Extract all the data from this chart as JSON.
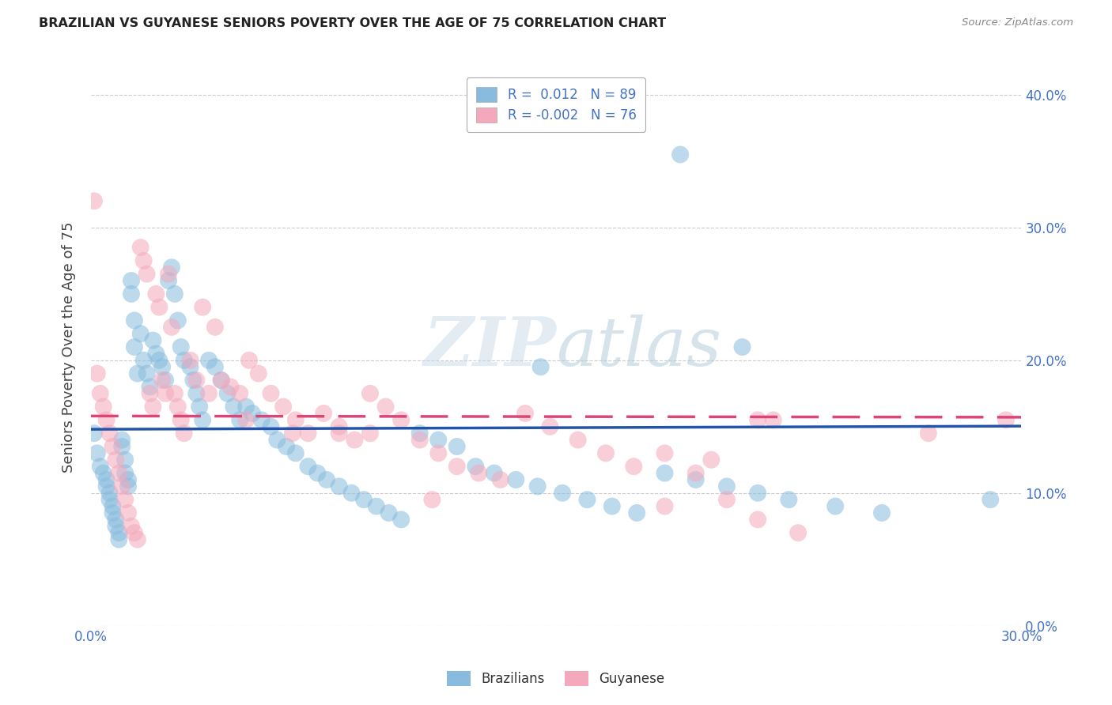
{
  "title": "BRAZILIAN VS GUYANESE SENIORS POVERTY OVER THE AGE OF 75 CORRELATION CHART",
  "source": "Source: ZipAtlas.com",
  "xlim": [
    0.0,
    0.3
  ],
  "ylim": [
    0.0,
    0.42
  ],
  "color_blue": "#88bbdd",
  "color_pink": "#f4a8bb",
  "legend_label_brazilians": "Brazilians",
  "legend_label_guyanese": "Guyanese",
  "watermark_text": "ZIPatlas",
  "background_color": "#ffffff",
  "blue_R": "0.012",
  "blue_N": "89",
  "pink_R": "-0.002",
  "pink_N": "76",
  "blue_line_intercept": 0.148,
  "blue_line_slope": 0.008,
  "pink_line_intercept": 0.158,
  "pink_line_slope": -0.003,
  "blue_scatter_x": [
    0.001,
    0.002,
    0.003,
    0.004,
    0.005,
    0.005,
    0.006,
    0.006,
    0.007,
    0.007,
    0.008,
    0.008,
    0.009,
    0.009,
    0.01,
    0.01,
    0.011,
    0.011,
    0.012,
    0.012,
    0.013,
    0.013,
    0.014,
    0.014,
    0.015,
    0.016,
    0.017,
    0.018,
    0.019,
    0.02,
    0.021,
    0.022,
    0.023,
    0.024,
    0.025,
    0.026,
    0.027,
    0.028,
    0.029,
    0.03,
    0.032,
    0.033,
    0.034,
    0.035,
    0.036,
    0.038,
    0.04,
    0.042,
    0.044,
    0.046,
    0.048,
    0.05,
    0.052,
    0.055,
    0.058,
    0.06,
    0.063,
    0.066,
    0.07,
    0.073,
    0.076,
    0.08,
    0.084,
    0.088,
    0.092,
    0.096,
    0.1,
    0.106,
    0.112,
    0.118,
    0.124,
    0.13,
    0.137,
    0.144,
    0.152,
    0.16,
    0.168,
    0.176,
    0.185,
    0.195,
    0.205,
    0.215,
    0.225,
    0.24,
    0.255,
    0.145,
    0.19,
    0.21,
    0.29
  ],
  "blue_scatter_y": [
    0.145,
    0.13,
    0.12,
    0.115,
    0.11,
    0.105,
    0.1,
    0.095,
    0.09,
    0.085,
    0.08,
    0.075,
    0.07,
    0.065,
    0.14,
    0.135,
    0.125,
    0.115,
    0.11,
    0.105,
    0.26,
    0.25,
    0.23,
    0.21,
    0.19,
    0.22,
    0.2,
    0.19,
    0.18,
    0.215,
    0.205,
    0.2,
    0.195,
    0.185,
    0.26,
    0.27,
    0.25,
    0.23,
    0.21,
    0.2,
    0.195,
    0.185,
    0.175,
    0.165,
    0.155,
    0.2,
    0.195,
    0.185,
    0.175,
    0.165,
    0.155,
    0.165,
    0.16,
    0.155,
    0.15,
    0.14,
    0.135,
    0.13,
    0.12,
    0.115,
    0.11,
    0.105,
    0.1,
    0.095,
    0.09,
    0.085,
    0.08,
    0.145,
    0.14,
    0.135,
    0.12,
    0.115,
    0.11,
    0.105,
    0.1,
    0.095,
    0.09,
    0.085,
    0.115,
    0.11,
    0.105,
    0.1,
    0.095,
    0.09,
    0.085,
    0.195,
    0.355,
    0.21,
    0.095
  ],
  "pink_scatter_x": [
    0.001,
    0.002,
    0.003,
    0.004,
    0.005,
    0.006,
    0.007,
    0.008,
    0.009,
    0.01,
    0.011,
    0.012,
    0.013,
    0.014,
    0.015,
    0.016,
    0.017,
    0.018,
    0.019,
    0.02,
    0.021,
    0.022,
    0.023,
    0.024,
    0.025,
    0.026,
    0.027,
    0.028,
    0.029,
    0.03,
    0.032,
    0.034,
    0.036,
    0.038,
    0.04,
    0.042,
    0.045,
    0.048,
    0.051,
    0.054,
    0.058,
    0.062,
    0.066,
    0.07,
    0.075,
    0.08,
    0.085,
    0.09,
    0.095,
    0.1,
    0.106,
    0.112,
    0.118,
    0.125,
    0.132,
    0.14,
    0.148,
    0.157,
    0.166,
    0.175,
    0.185,
    0.195,
    0.205,
    0.215,
    0.228,
    0.05,
    0.065,
    0.08,
    0.215,
    0.22,
    0.185,
    0.27,
    0.295,
    0.2,
    0.09,
    0.11
  ],
  "pink_scatter_y": [
    0.32,
    0.19,
    0.175,
    0.165,
    0.155,
    0.145,
    0.135,
    0.125,
    0.115,
    0.105,
    0.095,
    0.085,
    0.075,
    0.07,
    0.065,
    0.285,
    0.275,
    0.265,
    0.175,
    0.165,
    0.25,
    0.24,
    0.185,
    0.175,
    0.265,
    0.225,
    0.175,
    0.165,
    0.155,
    0.145,
    0.2,
    0.185,
    0.24,
    0.175,
    0.225,
    0.185,
    0.18,
    0.175,
    0.2,
    0.19,
    0.175,
    0.165,
    0.155,
    0.145,
    0.16,
    0.15,
    0.14,
    0.175,
    0.165,
    0.155,
    0.14,
    0.13,
    0.12,
    0.115,
    0.11,
    0.16,
    0.15,
    0.14,
    0.13,
    0.12,
    0.09,
    0.115,
    0.095,
    0.08,
    0.07,
    0.155,
    0.145,
    0.145,
    0.155,
    0.155,
    0.13,
    0.145,
    0.155,
    0.125,
    0.145,
    0.095
  ]
}
